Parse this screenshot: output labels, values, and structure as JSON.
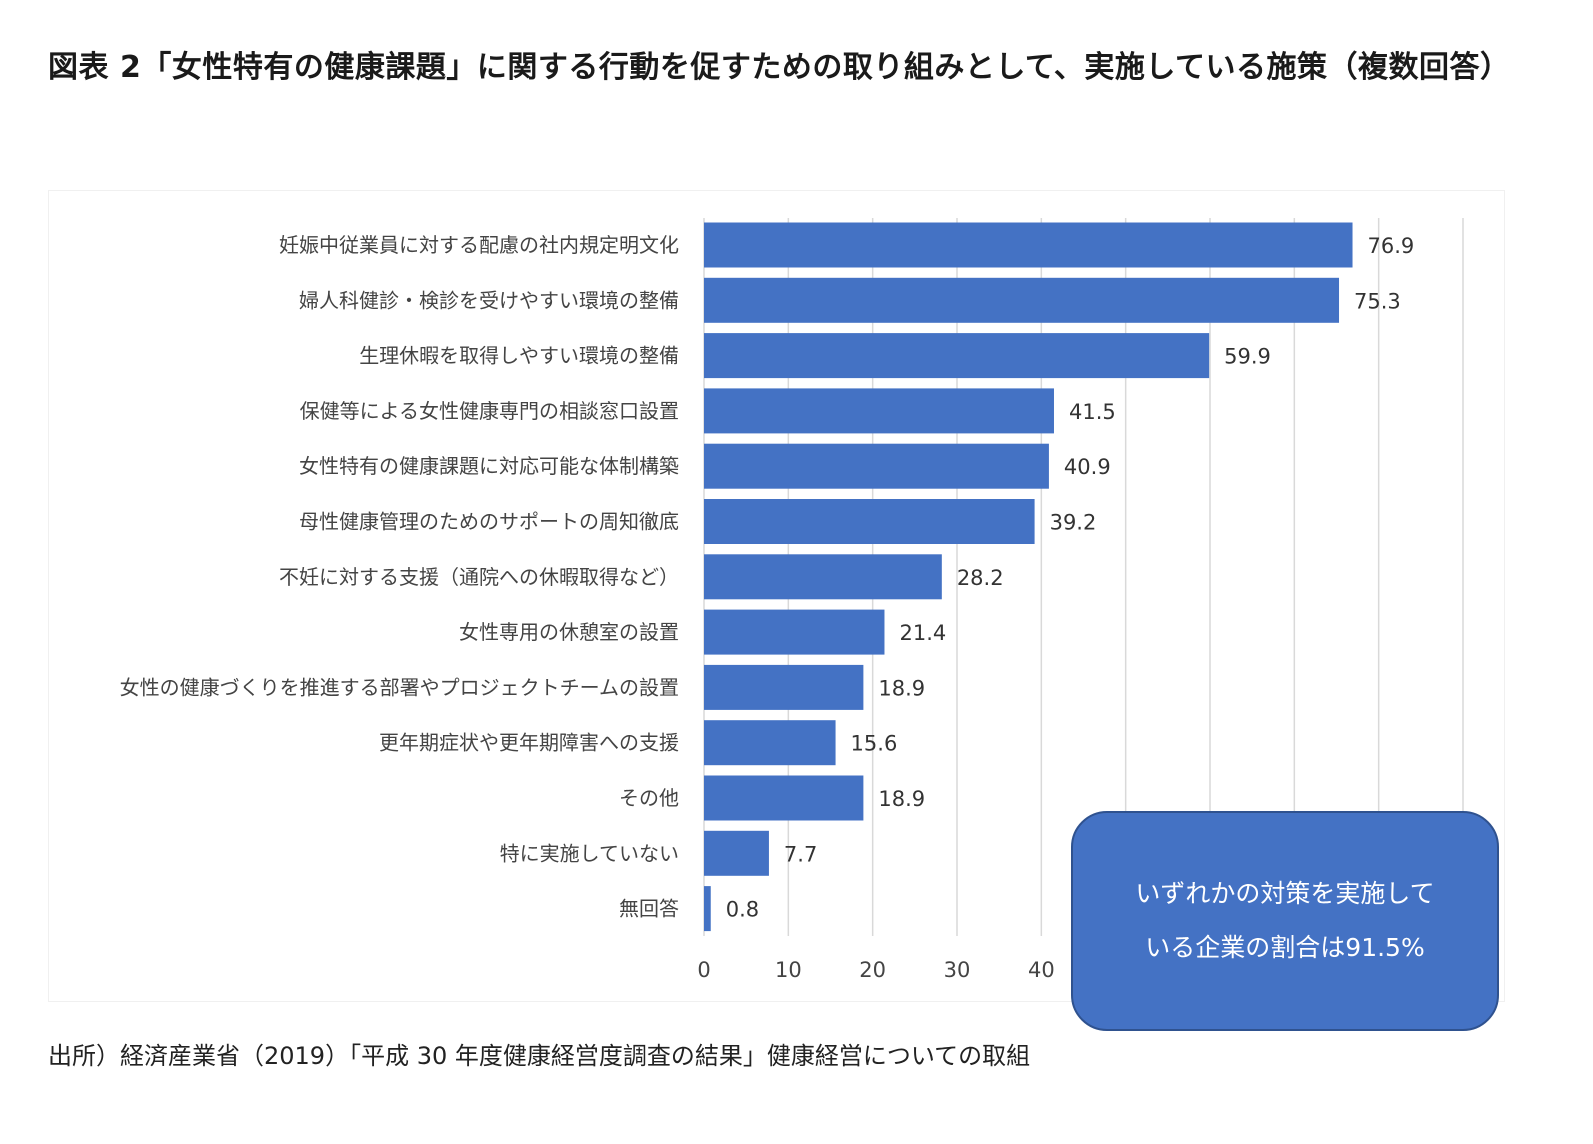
{
  "title": "図表 2「女性特有の健康課題」に関する行動を促すための取り組みとして、実施している施策（複数回答）",
  "source": "出所）経済産業省（2019）「平成 30 年度健康経営度調査の結果」健康経営についての取組",
  "callout": {
    "line1": "いずれかの対策を実施して",
    "line2": "いる企業の割合は91.5%"
  },
  "colors": {
    "bar": "#4472c4",
    "grid": "#d9d9d9"
  },
  "chart_data": {
    "type": "bar",
    "orientation": "horizontal",
    "categories": [
      "妊娠中従業員に対する配慮の社内規定明文化",
      "婦人科健診・検診を受けやすい環境の整備",
      "生理休暇を取得しやすい環境の整備",
      "保健等による女性健康専門の相談窓口設置",
      "女性特有の健康課題に対応可能な体制構築",
      "母性健康管理のためのサポートの周知徹底",
      "不妊に対する支援（通院への休暇取得など）",
      "女性専用の休憩室の設置",
      "女性の健康づくりを推進する部署やプロジェクトチームの設置",
      "更年期症状や更年期障害への支援",
      "その他",
      "特に実施していない",
      "無回答"
    ],
    "values": [
      76.9,
      75.3,
      59.9,
      41.5,
      40.9,
      39.2,
      28.2,
      21.4,
      18.9,
      15.6,
      18.9,
      7.7,
      0.8
    ],
    "value_labels": [
      "76.9",
      "75.3",
      "59.9",
      "41.5",
      "40.9",
      "39.2",
      "28.2",
      "21.4",
      "18.9",
      "15.6",
      "18.9",
      "7.7",
      "0.8"
    ],
    "xlim": [
      0,
      90
    ],
    "xticks": [
      "0",
      "10",
      "20",
      "30",
      "40",
      "50",
      "60",
      "70",
      "80",
      "90"
    ],
    "unit": "%",
    "grid": true
  }
}
